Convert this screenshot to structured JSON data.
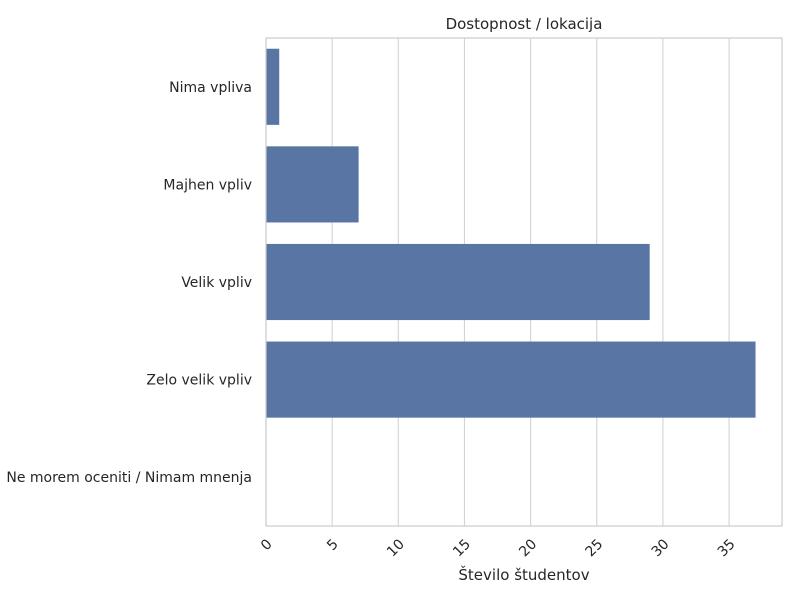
{
  "chart_data": {
    "type": "bar",
    "orientation": "horizontal",
    "title": "Dostopnost / lokacija",
    "xlabel": "Število študentov",
    "ylabel": "",
    "categories": [
      "Nima vpliva",
      "Majhen vpliv",
      "Velik vpliv",
      "Zelo velik vpliv",
      "Ne morem oceniti / Nimam mnenja"
    ],
    "values": [
      1,
      7,
      29,
      37,
      0
    ],
    "xlim": [
      0,
      39
    ],
    "xticks": [
      0,
      5,
      10,
      15,
      20,
      25,
      30,
      35
    ],
    "bar_color": "#5975a4",
    "grid_color": "#d3d3d3",
    "grid": true,
    "tick_label_rotation": -45
  }
}
